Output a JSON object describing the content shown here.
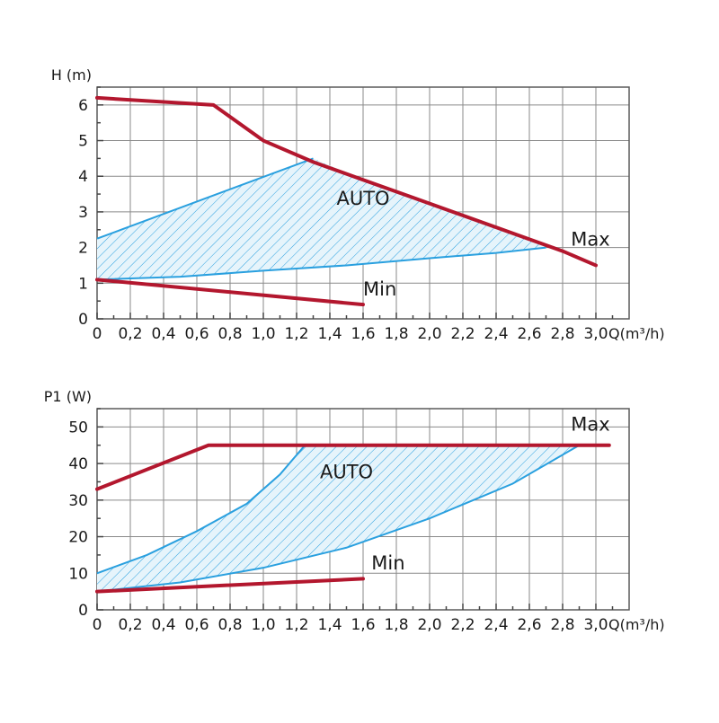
{
  "chart_data": [
    {
      "type": "line",
      "ylabel": "H (m)",
      "xlabel": "Q(m³/h)",
      "xlim": [
        0,
        3.2
      ],
      "ylim": [
        0,
        6.5
      ],
      "x_ticks": [
        0,
        0.2,
        0.4,
        0.6,
        0.8,
        1.0,
        1.2,
        1.4,
        1.6,
        1.8,
        2.0,
        2.2,
        2.4,
        2.6,
        2.8,
        3.0
      ],
      "x_tick_labels": [
        "0",
        "0,2",
        "0,4",
        "0,6",
        "0,8",
        "1,0",
        "1,2",
        "1,4",
        "1,6",
        "1,8",
        "2,0",
        "2,2",
        "2,4",
        "2,6",
        "2,8",
        "3,0"
      ],
      "y_ticks": [
        0,
        1,
        2,
        3,
        4,
        5,
        6
      ],
      "y_tick_labels": [
        "0",
        "1",
        "2",
        "3",
        "4",
        "5",
        "6"
      ],
      "grid": true,
      "series": [
        {
          "name": "Max",
          "color": "#b3172e",
          "x": [
            0,
            0.7,
            1.0,
            1.3,
            1.6,
            1.9,
            2.2,
            2.5,
            2.8,
            3.0
          ],
          "y": [
            6.2,
            6.0,
            5.0,
            4.4,
            3.9,
            3.4,
            2.9,
            2.4,
            1.9,
            1.5
          ]
        },
        {
          "name": "Min",
          "color": "#b3172e",
          "x": [
            0,
            1.6
          ],
          "y": [
            1.1,
            0.4
          ]
        }
      ],
      "auto_region": {
        "label": "AUTO",
        "color": "#2aa0df",
        "upper": {
          "x": [
            0,
            1.3
          ],
          "y": [
            2.25,
            4.5
          ]
        },
        "lower": {
          "x": [
            0,
            0.5,
            1.0,
            1.5,
            2.0,
            2.4,
            2.7
          ],
          "y": [
            1.1,
            1.18,
            1.35,
            1.5,
            1.7,
            1.85,
            2.0
          ]
        },
        "envelope": {
          "x": [
            1.3,
            1.6,
            1.9,
            2.2,
            2.5,
            2.7
          ],
          "y": [
            4.5,
            3.9,
            3.4,
            2.9,
            2.4,
            2.0
          ]
        },
        "label_pos": [
          1.6,
          3.2
        ]
      },
      "annotations": [
        {
          "text": "Max",
          "x": 2.85,
          "y": 2.05
        },
        {
          "text": "Min",
          "x": 1.6,
          "y": 0.65
        }
      ]
    },
    {
      "type": "line",
      "ylabel": "P1 (W)",
      "xlabel": "Q(m³/h)",
      "xlim": [
        0,
        3.2
      ],
      "ylim": [
        0,
        55
      ],
      "x_ticks": [
        0,
        0.2,
        0.4,
        0.6,
        0.8,
        1.0,
        1.2,
        1.4,
        1.6,
        1.8,
        2.0,
        2.2,
        2.4,
        2.6,
        2.8,
        3.0
      ],
      "x_tick_labels": [
        "0",
        "0,2",
        "0,4",
        "0,6",
        "0,8",
        "1,0",
        "1,2",
        "1,4",
        "1,6",
        "1,8",
        "2,0",
        "2,2",
        "2,4",
        "2,6",
        "2,8",
        "3,0"
      ],
      "y_ticks": [
        0,
        10,
        20,
        30,
        40,
        50
      ],
      "y_tick_labels": [
        "0",
        "10",
        "20",
        "30",
        "40",
        "50"
      ],
      "grid": true,
      "series": [
        {
          "name": "Max",
          "color": "#b3172e",
          "x": [
            0,
            0.67,
            3.08
          ],
          "y": [
            33,
            45,
            45
          ]
        },
        {
          "name": "Min",
          "color": "#b3172e",
          "x": [
            0,
            1.6
          ],
          "y": [
            5,
            8.5
          ]
        }
      ],
      "auto_region": {
        "label": "AUTO",
        "color": "#2aa0df",
        "upper": {
          "x": [
            0,
            0.3,
            0.6,
            0.9,
            1.1,
            1.25
          ],
          "y": [
            10,
            15,
            21.5,
            29,
            37,
            45
          ]
        },
        "lower": {
          "x": [
            0,
            0.5,
            1.0,
            1.5,
            2.0,
            2.5,
            2.9
          ],
          "y": [
            5,
            7.5,
            11.5,
            17,
            25,
            34.5,
            45
          ]
        },
        "envelope": {
          "x": [
            1.25,
            2.9
          ],
          "y": [
            45,
            45
          ]
        },
        "label_pos": [
          1.5,
          36
        ]
      },
      "annotations": [
        {
          "text": "Max",
          "x": 2.85,
          "y": 49
        },
        {
          "text": "Min",
          "x": 1.65,
          "y": 11
        }
      ]
    }
  ]
}
